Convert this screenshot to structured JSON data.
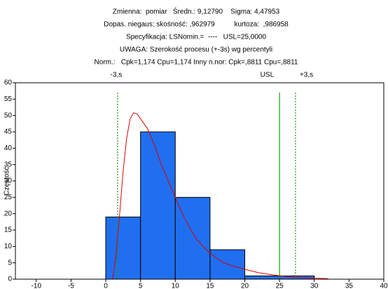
{
  "chart_data": {
    "type": "histogram",
    "title_lines": [
      "Zmienna:  pomiar   Średn.: 9,12790    Sigma: 4,47953",
      "Dopas. niegaus; skośność: ,962979          kurtoza:  ,986958",
      "Specyfikacja: LSNomin.=  ----   USL=25,0000",
      "UWAGA: Szerokość procesu (+-3s) wg percentyli",
      "Norm.:   Cpk=1,174 Cpu=1,174 Inny n.nor: Cpk=,8811 Cpu=,8811"
    ],
    "ylabel": "Częstość",
    "bins": [
      0,
      5,
      10,
      15,
      20,
      25,
      30
    ],
    "values": [
      19,
      45,
      25,
      9,
      1,
      1
    ],
    "color": "#1f6ff0",
    "xlim": [
      -13,
      40
    ],
    "xticks": [
      -10,
      -5,
      0,
      5,
      10,
      15,
      20,
      25,
      30,
      35,
      40
    ],
    "ylim": [
      0,
      60
    ],
    "yticks": [
      0,
      5,
      10,
      15,
      20,
      25,
      30,
      35,
      40,
      45,
      50,
      55,
      60
    ],
    "fit_curve": {
      "color": "#e00000",
      "x": [
        1,
        1.5,
        2,
        2.5,
        3,
        3.5,
        4,
        4.5,
        5,
        6,
        7,
        8,
        9,
        10,
        11,
        12,
        13,
        14,
        15,
        16,
        17,
        18,
        20,
        22,
        24,
        26,
        28,
        30,
        32
      ],
      "values": [
        0,
        8,
        20,
        33,
        43,
        49,
        50.8,
        50.5,
        49,
        46,
        41,
        35,
        30,
        25,
        20,
        16,
        12.4,
        10,
        8,
        6.3,
        5,
        4.2,
        3,
        2,
        1.3,
        0.8,
        0.5,
        0.3,
        0.15
      ]
    },
    "reference_lines": [
      {
        "x": 1.7,
        "label": "-3,s",
        "style": "dotted",
        "color": "#1a9a1a"
      },
      {
        "x": 25,
        "label": "USL",
        "style": "solid",
        "color": "#1a9a1a"
      },
      {
        "x": 27.3,
        "label": "+3,s",
        "style": "dotted",
        "color": "#1a9a1a"
      }
    ]
  }
}
